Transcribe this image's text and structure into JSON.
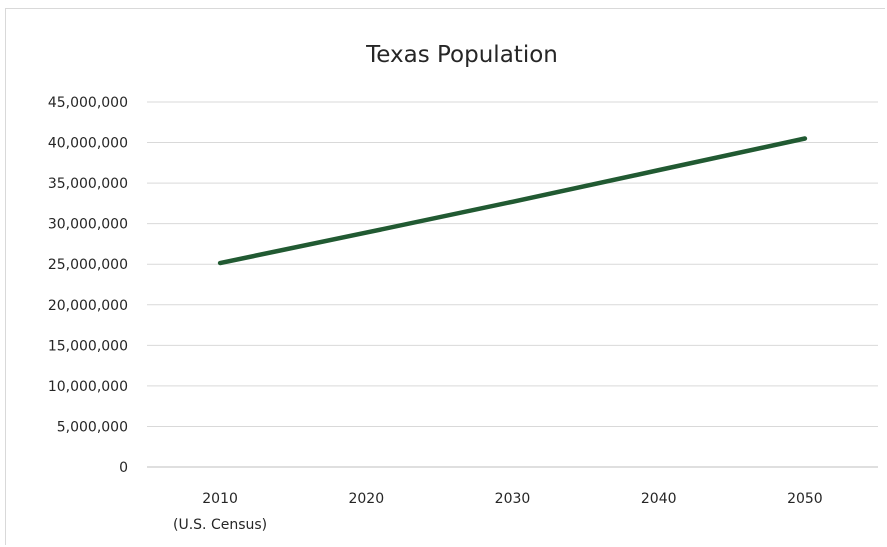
{
  "chart_data": {
    "type": "line",
    "title": "Texas Population",
    "categories": [
      "2010",
      "2020",
      "2030",
      "2040",
      "2050"
    ],
    "category_sublabels": [
      "(U.S. Census)",
      "",
      "",
      "",
      ""
    ],
    "series": [
      {
        "values": [
          25145561,
          28900000,
          32700000,
          36600000,
          40500000
        ],
        "color": "#215a32"
      }
    ],
    "ylim": [
      0,
      45000000
    ],
    "yticks": [
      "0",
      "5,000,000",
      "10,000,000",
      "15,000,000",
      "20,000,000",
      "25,000,000",
      "30,000,000",
      "35,000,000",
      "40,000,000",
      "45,000,000"
    ],
    "grid": true,
    "legend": "none"
  }
}
